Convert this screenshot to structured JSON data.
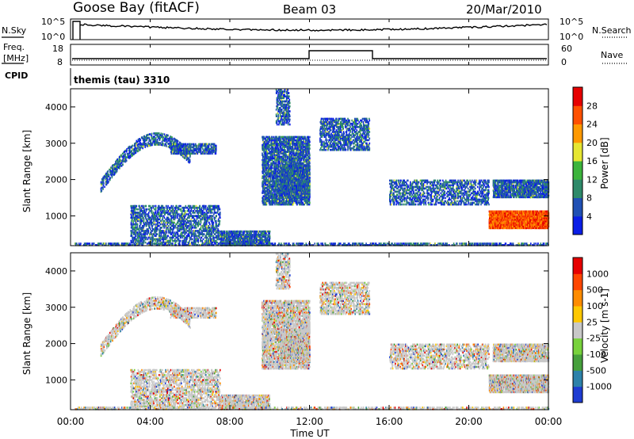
{
  "header": {
    "station": "Goose Bay (fitACF)",
    "beam": "Beam 03",
    "date": "20/Mar/2010"
  },
  "panels": {
    "nsky_label": "N.Sky",
    "nsearch_label": "N.Search",
    "noise_ticks": [
      "10^5",
      "10^0"
    ],
    "freq_label_1": "Freq.",
    "freq_label_2": "[MHz]",
    "freq_ticks": [
      "18",
      "8"
    ],
    "nave_label": "Nave",
    "nave_ticks": [
      "60",
      "0"
    ],
    "cpid_label": "CPID",
    "cpid_text": "themis (tau) 3310"
  },
  "chart_data": [
    {
      "type": "heatmap",
      "parameter": "Power",
      "ylabel": "Slant Range [km]",
      "ylim": [
        180,
        4500
      ],
      "yticks": [
        "1000",
        "2000",
        "3000",
        "4000"
      ],
      "colorbar_label": "Power [dB]",
      "colorbar_ticks": [
        "28",
        "24",
        "20",
        "16",
        "12",
        "8",
        "4"
      ],
      "colorbar_colors": [
        "#0a1ee6",
        "#2050b4",
        "#2e8a6a",
        "#3cb43c",
        "#e6e632",
        "#ff9900",
        "#ff5000",
        "#e60000"
      ]
    },
    {
      "type": "heatmap",
      "parameter": "Velocity",
      "ylabel": "Slant Range [km]",
      "ylim": [
        180,
        4500
      ],
      "yticks": [
        "1000",
        "2000",
        "3000",
        "4000"
      ],
      "colorbar_label": "Velocity [m s-1]",
      "colorbar_ticks": [
        "1000",
        "500",
        "100",
        "25",
        "-25",
        "-100",
        "-500",
        "-1000"
      ],
      "colorbar_colors": [
        "#1e3cd2",
        "#2d82aa",
        "#46a03c",
        "#78d23c",
        "#c8c8c8",
        "#ffc800",
        "#ff8c00",
        "#ff4600",
        "#e60000"
      ]
    }
  ],
  "time_axis": {
    "ticks": [
      "00:00",
      "04:00",
      "08:00",
      "12:00",
      "16:00",
      "20:00",
      "00:00"
    ],
    "label": "Time UT"
  },
  "colors": {
    "gray_ground": "#c8c8c8",
    "red_ground_scatter": "#e60000"
  }
}
